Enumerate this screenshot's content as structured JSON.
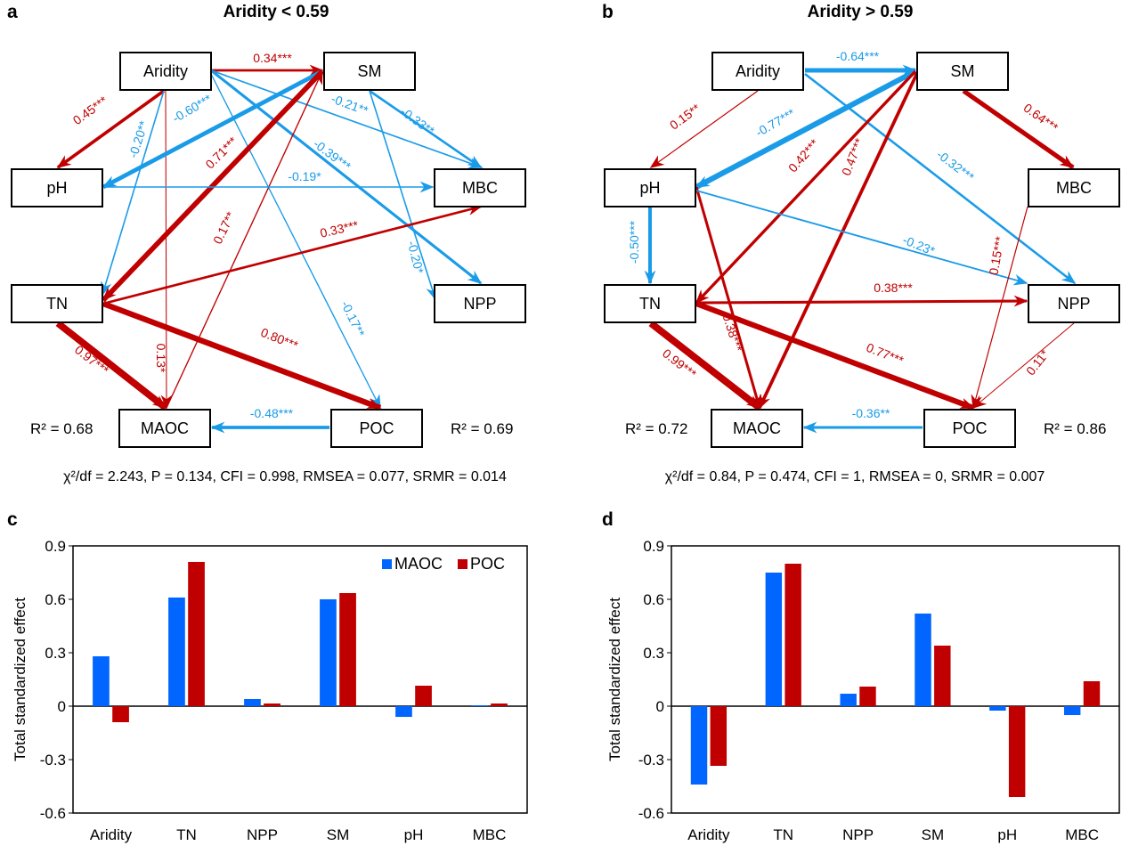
{
  "colors": {
    "positive": "#C00000",
    "negative": "#1A9BE8",
    "maoc": "#0066FF",
    "poc": "#C00000"
  },
  "panels": {
    "a": {
      "letter": "a",
      "title": "Aridity < 0.59",
      "nodes": {
        "aridity": "Aridity",
        "sm": "SM",
        "ph": "pH",
        "mbc": "MBC",
        "tn": "TN",
        "npp": "NPP",
        "maoc": "MAOC",
        "poc": "POC"
      },
      "r2_maoc": "R² = 0.68",
      "r2_poc": "R² = 0.69",
      "fit": "χ²/df = 2.243, P = 0.134, CFI = 0.998, RMSEA = 0.077, SRMR = 0.014",
      "paths": [
        {
          "from": "aridity",
          "to": "sm",
          "coef": 0.34,
          "label": "0.34***"
        },
        {
          "from": "aridity",
          "to": "ph",
          "coef": 0.45,
          "label": "0.45***"
        },
        {
          "from": "aridity",
          "to": "tn",
          "coef": -0.2,
          "label": "-0.20**"
        },
        {
          "from": "aridity",
          "to": "maoc",
          "coef": 0.13,
          "label": "0.13*"
        },
        {
          "from": "aridity",
          "to": "poc",
          "coef": -0.17,
          "label": "-0.17**"
        },
        {
          "from": "aridity",
          "to": "mbc",
          "coef": -0.21,
          "label": "-0.21**"
        },
        {
          "from": "aridity",
          "to": "npp",
          "coef": -0.39,
          "label": "-0.39***"
        },
        {
          "from": "sm",
          "to": "ph",
          "coef": -0.6,
          "label": "-0.60***"
        },
        {
          "from": "sm",
          "to": "tn",
          "coef": 0.71,
          "label": "0.71***"
        },
        {
          "from": "maoc",
          "to": "sm",
          "coef": 0.17,
          "label": "0.17**"
        },
        {
          "from": "sm",
          "to": "mbc",
          "coef": -0.33,
          "label": "-0.33**"
        },
        {
          "from": "sm",
          "to": "npp",
          "coef": -0.2,
          "label": "-0.20*"
        },
        {
          "from": "ph",
          "to": "mbc",
          "coef": -0.19,
          "label": "-0.19*"
        },
        {
          "from": "tn",
          "to": "mbc",
          "coef": 0.33,
          "label": "0.33***"
        },
        {
          "from": "tn",
          "to": "maoc",
          "coef": 0.97,
          "label": "0.97***"
        },
        {
          "from": "tn",
          "to": "poc",
          "coef": 0.8,
          "label": "0.80***"
        },
        {
          "from": "poc",
          "to": "maoc",
          "coef": -0.48,
          "label": "-0.48***"
        }
      ]
    },
    "b": {
      "letter": "b",
      "title": "Aridity > 0.59",
      "nodes": {
        "aridity": "Aridity",
        "sm": "SM",
        "ph": "pH",
        "mbc": "MBC",
        "tn": "TN",
        "npp": "NPP",
        "maoc": "MAOC",
        "poc": "POC"
      },
      "r2_maoc": "R² = 0.72",
      "r2_poc": "R² = 0.86",
      "fit": "χ²/df = 0.84, P = 0.474, CFI = 1, RMSEA = 0, SRMR = 0.007",
      "paths": [
        {
          "from": "aridity",
          "to": "sm",
          "coef": -0.64,
          "label": "-0.64***"
        },
        {
          "from": "aridity",
          "to": "ph",
          "coef": 0.15,
          "label": "0.15**"
        },
        {
          "from": "aridity",
          "to": "npp",
          "coef": -0.32,
          "label": "-0.32***"
        },
        {
          "from": "sm",
          "to": "ph",
          "coef": -0.77,
          "label": "-0.77***"
        },
        {
          "from": "sm",
          "to": "tn",
          "coef": 0.42,
          "label": "0.42***"
        },
        {
          "from": "sm",
          "to": "maoc",
          "coef": 0.47,
          "label": "0.47***"
        },
        {
          "from": "sm",
          "to": "mbc",
          "coef": 0.64,
          "label": "0.64***"
        },
        {
          "from": "ph",
          "to": "tn",
          "coef": -0.5,
          "label": "-0.50***"
        },
        {
          "from": "ph",
          "to": "maoc",
          "coef": 0.38,
          "label": "0.38***"
        },
        {
          "from": "ph",
          "to": "npp",
          "coef": -0.23,
          "label": "-0.23*"
        },
        {
          "from": "tn",
          "to": "npp",
          "coef": 0.38,
          "label": "0.38***"
        },
        {
          "from": "tn",
          "to": "maoc",
          "coef": 0.99,
          "label": "0.99***"
        },
        {
          "from": "tn",
          "to": "poc",
          "coef": 0.77,
          "label": "0.77***"
        },
        {
          "from": "mbc",
          "to": "poc",
          "coef": 0.15,
          "label": "0.15***"
        },
        {
          "from": "npp",
          "to": "poc",
          "coef": 0.11,
          "label": "0.11*"
        },
        {
          "from": "poc",
          "to": "maoc",
          "coef": -0.36,
          "label": "-0.36**"
        }
      ]
    }
  },
  "chart_data": [
    {
      "panel": "c",
      "letter": "c",
      "type": "bar",
      "title": "",
      "xlabel": "",
      "ylabel": "Total standardized effect",
      "categories": [
        "Aridity",
        "TN",
        "NPP",
        "SM",
        "pH",
        "MBC"
      ],
      "series": [
        {
          "name": "MAOC",
          "values": [
            0.28,
            0.61,
            0.04,
            0.6,
            -0.06,
            0.005
          ]
        },
        {
          "name": "POC",
          "values": [
            -0.09,
            0.81,
            0.015,
            0.635,
            0.115,
            0.015
          ]
        }
      ],
      "ylim": [
        -0.6,
        0.9
      ],
      "yticks": [
        0.9,
        0.6,
        0.3,
        0,
        -0.3,
        -0.6
      ],
      "ytick_labels": [
        "0.9",
        "0.6",
        "0.3",
        "0",
        "-0.3",
        "-0.6"
      ],
      "legend": "top-right",
      "grid": false
    },
    {
      "panel": "d",
      "letter": "d",
      "type": "bar",
      "title": "",
      "xlabel": "",
      "ylabel": "Total standardized effect",
      "categories": [
        "Aridity",
        "TN",
        "NPP",
        "SM",
        "pH",
        "MBC"
      ],
      "series": [
        {
          "name": "MAOC",
          "values": [
            -0.44,
            0.75,
            0.07,
            0.52,
            -0.025,
            -0.05
          ]
        },
        {
          "name": "POC",
          "values": [
            -0.335,
            0.8,
            0.11,
            0.34,
            -0.51,
            0.14
          ]
        }
      ],
      "ylim": [
        -0.6,
        0.9
      ],
      "yticks": [
        0.9,
        0.6,
        0.3,
        0,
        -0.3,
        -0.6
      ],
      "ytick_labels": [
        "0.9",
        "0.6",
        "0.3",
        "0",
        "-0.3",
        "-0.6"
      ],
      "legend": "none",
      "grid": false
    }
  ]
}
